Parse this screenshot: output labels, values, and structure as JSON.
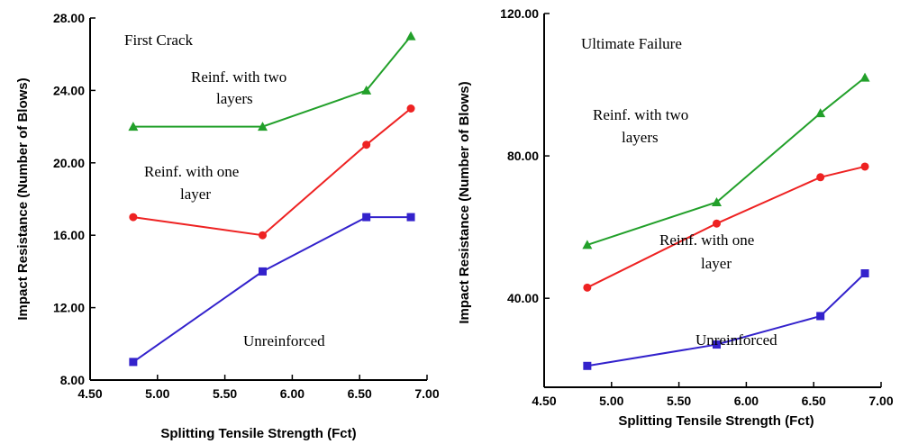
{
  "chart_data": [
    {
      "type": "line",
      "xlabel": "Splitting Tensile Strength (Fct)",
      "ylabel": "Impact Resistance (Number of Blows)",
      "xlim": [
        4.5,
        7.0
      ],
      "ylim": [
        8.0,
        28.0
      ],
      "xticks": [
        "4.50",
        "5.00",
        "5.50",
        "6.00",
        "6.50",
        "7.00"
      ],
      "yticks": [
        "8.00",
        "12.00",
        "16.00",
        "20.00",
        "24.00",
        "28.00"
      ],
      "x": [
        4.82,
        5.78,
        6.55,
        6.88
      ],
      "series": [
        {
          "values": [
            22,
            22,
            24,
            27
          ],
          "color": "#22a02a",
          "marker": "triangle"
        },
        {
          "values": [
            17,
            16,
            21,
            23
          ],
          "color": "#ee2222",
          "marker": "circle"
        },
        {
          "values": [
            9,
            14,
            17,
            17
          ],
          "color": "#3322cc",
          "marker": "square"
        }
      ],
      "annotations": [
        "First Crack",
        "Reinf. with two",
        "layers",
        "Reinf. with one",
        "layer",
        "Unreinforced"
      ],
      "grid": false,
      "legend": "none"
    },
    {
      "type": "line",
      "xlabel": "Splitting Tensile Strength (Fct)",
      "ylabel": "Impact Resistance (Number of Blows)",
      "xlim": [
        4.5,
        7.0
      ],
      "ylim": [
        15,
        120
      ],
      "xticks": [
        "4.50",
        "5.00",
        "5.50",
        "6.00",
        "6.50",
        "7.00"
      ],
      "yticks": [
        "40.00",
        "80.00",
        "120.00"
      ],
      "x": [
        4.82,
        5.78,
        6.55,
        6.88
      ],
      "series": [
        {
          "values": [
            55,
            67,
            92,
            102
          ],
          "color": "#22a02a",
          "marker": "triangle"
        },
        {
          "values": [
            43,
            61,
            74,
            77
          ],
          "color": "#ee2222",
          "marker": "circle"
        },
        {
          "values": [
            21,
            27,
            35,
            47
          ],
          "color": "#3322cc",
          "marker": "square"
        }
      ],
      "annotations": [
        "Ultimate Failure",
        "Reinf. with two",
        "layers",
        "Reinf. with one",
        "layer",
        "Unreinforced"
      ],
      "grid": false,
      "legend": "none"
    }
  ]
}
